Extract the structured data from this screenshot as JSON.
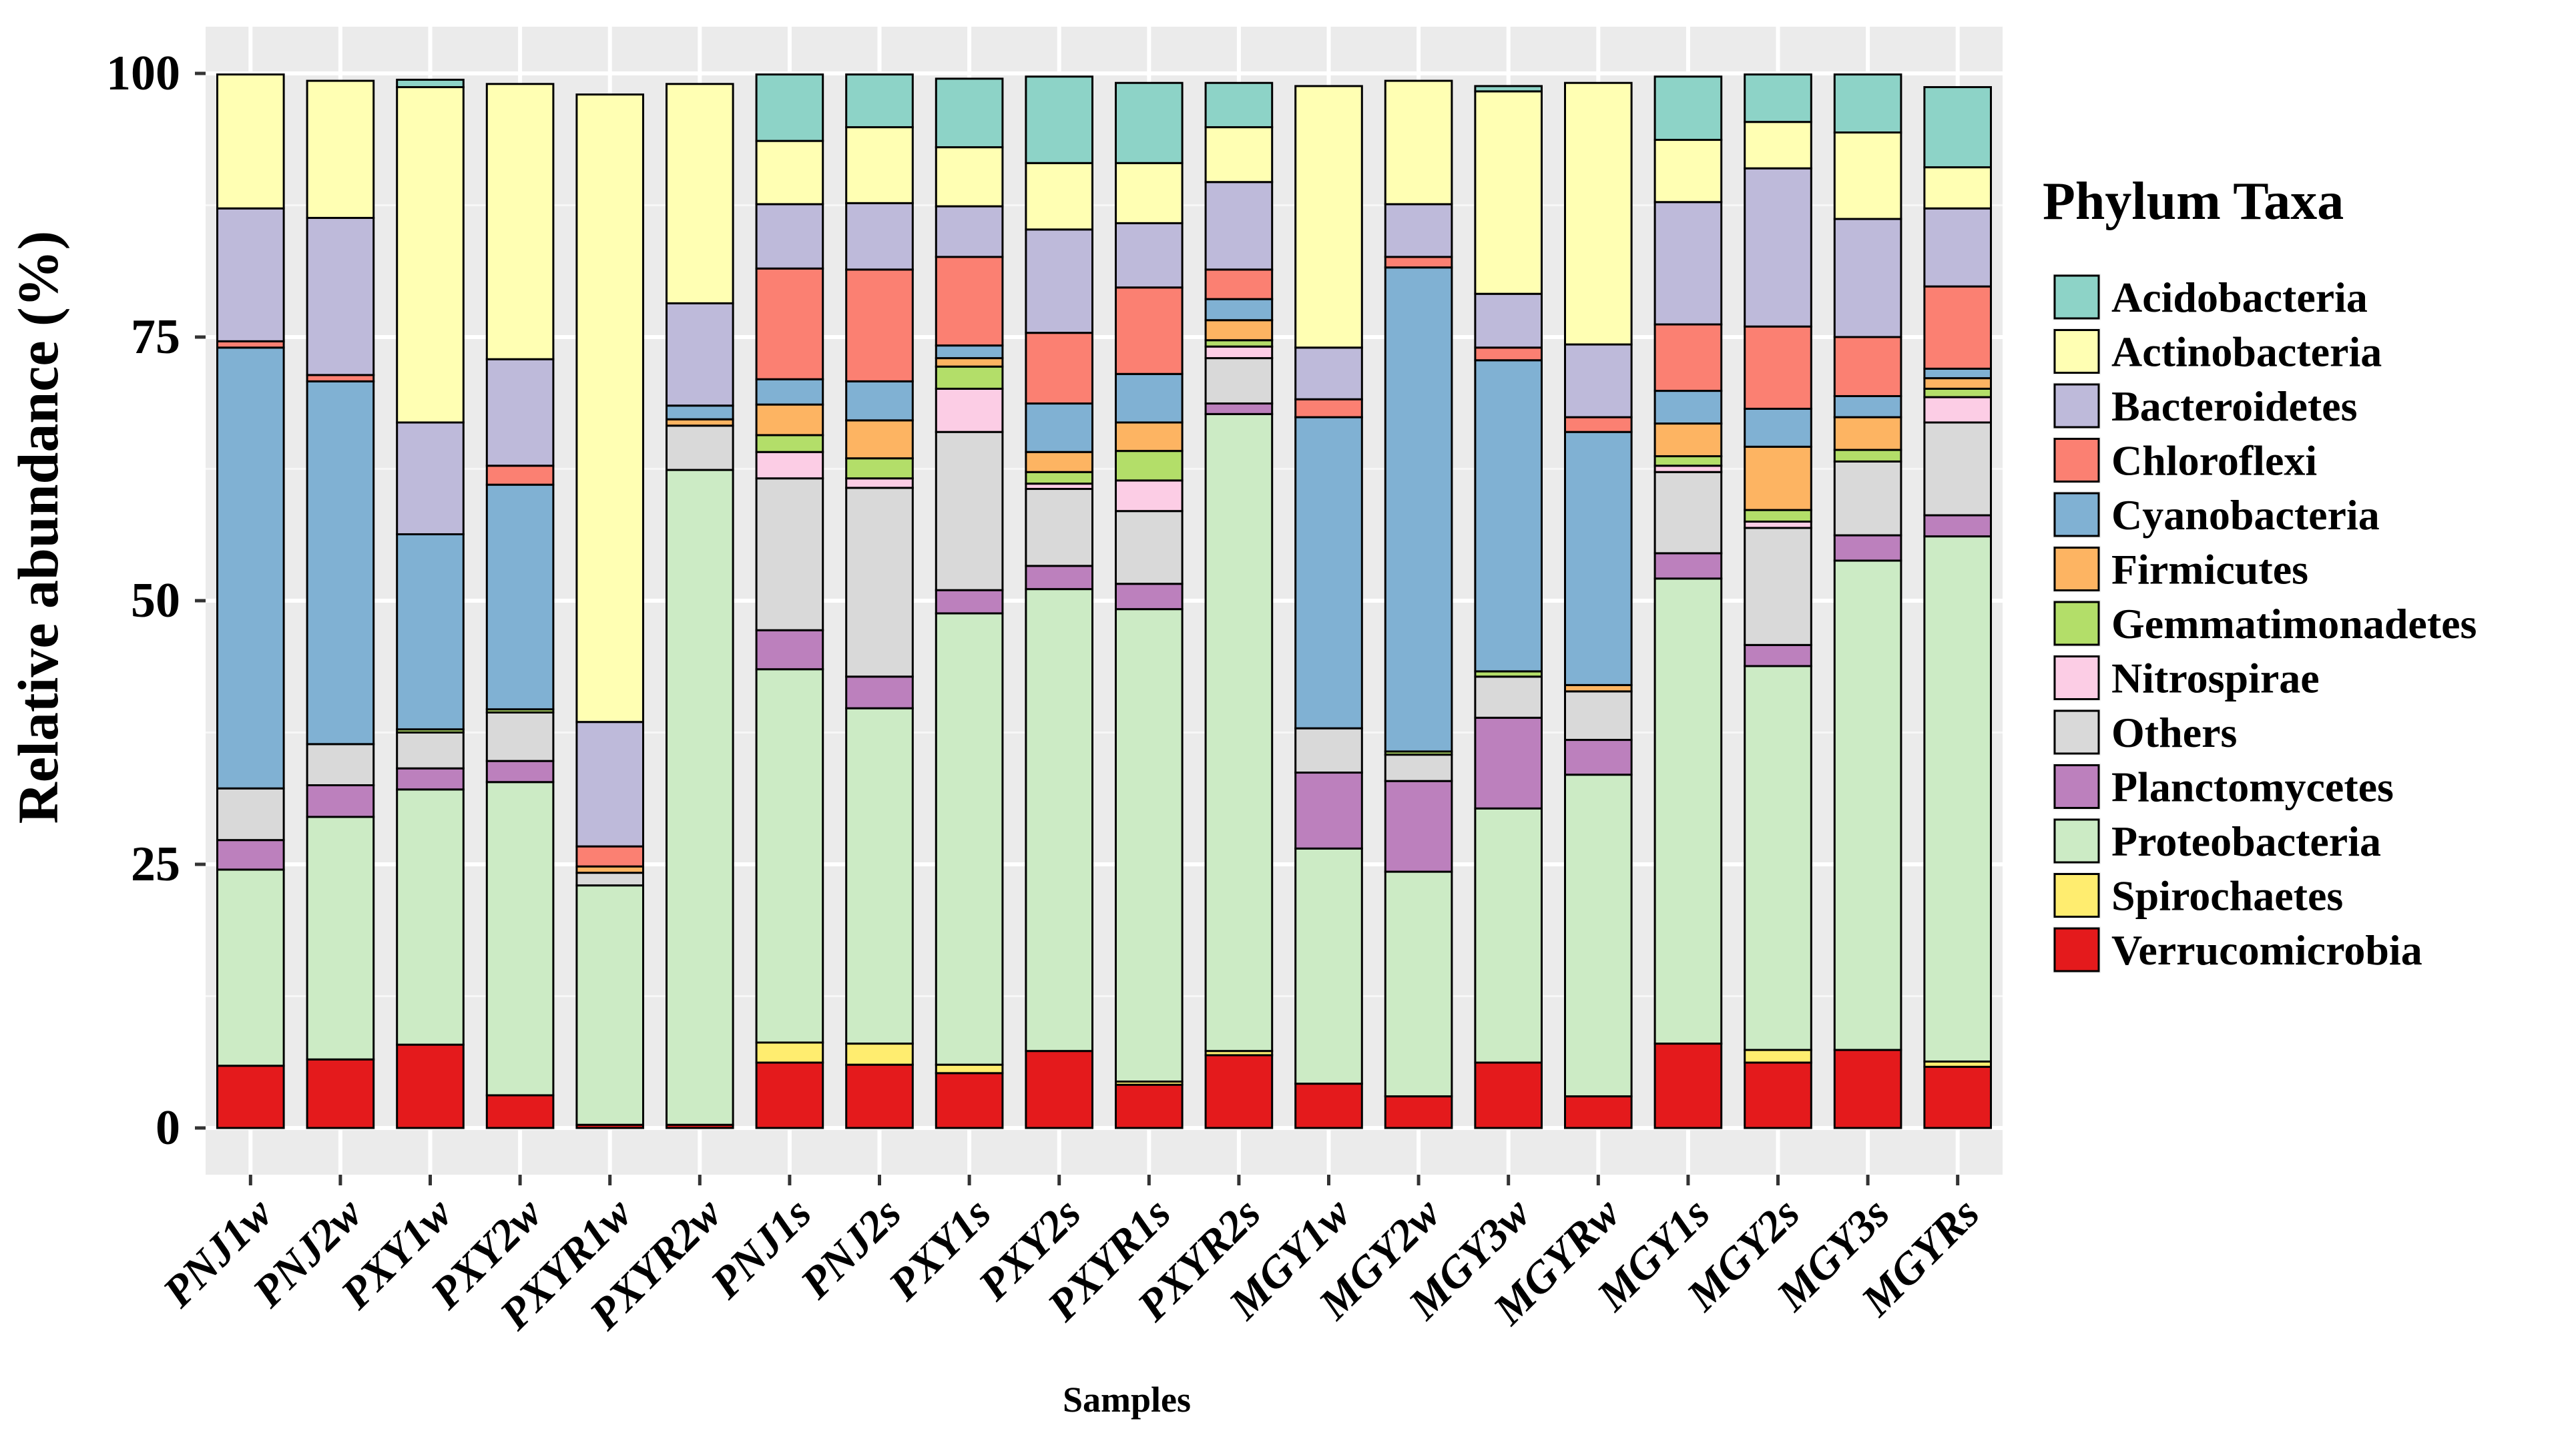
{
  "chart_data": {
    "type": "bar",
    "stacked": true,
    "title": "",
    "xlabel": "Samples",
    "ylabel": "Relative abundance (%)",
    "ylim": [
      0,
      100
    ],
    "yticks": [
      0,
      25,
      50,
      75,
      100
    ],
    "grid": true,
    "legend_position": "right",
    "legend_title": "Phylum Taxa",
    "categories": [
      "PNJ1w",
      "PNJ2w",
      "PXY1w",
      "PXY2w",
      "PXYR1w",
      "PXYR2w",
      "PNJ1s",
      "PNJ2s",
      "PXY1s",
      "PXY2s",
      "PXYR1s",
      "PXYR2s",
      "MGY1w",
      "MGY2w",
      "MGY3w",
      "MGYRw",
      "MGY1s",
      "MGY2s",
      "MGY3s",
      "MGYRs"
    ],
    "stack_order_bottom_to_top": [
      "Verrucomicrobia",
      "Spirochaetes",
      "Proteobacteria",
      "Planctomycetes",
      "Others",
      "Nitrospirae",
      "Gemmatimonadetes",
      "Firmicutes",
      "Cyanobacteria",
      "Chloroflexi",
      "Bacteroidetes",
      "Actinobacteria",
      "Acidobacteria"
    ],
    "series": [
      {
        "name": "Acidobacteria",
        "color": "#8dd3c7",
        "values": [
          0,
          0,
          0.7,
          0,
          0,
          0,
          6.3,
          5.0,
          6.5,
          8.2,
          7.6,
          4.2,
          0,
          0,
          0.5,
          0,
          6.0,
          4.5,
          5.5,
          7.6
        ]
      },
      {
        "name": "Actinobacteria",
        "color": "#ffffb3",
        "values": [
          12.7,
          13.0,
          31.8,
          26.1,
          59.5,
          20.8,
          6.0,
          7.2,
          5.6,
          6.3,
          5.7,
          5.2,
          24.8,
          11.7,
          19.2,
          24.8,
          5.9,
          4.4,
          8.2,
          3.9
        ]
      },
      {
        "name": "Bacteroidetes",
        "color": "#bebada",
        "values": [
          12.6,
          14.9,
          10.6,
          10.1,
          11.8,
          9.7,
          6.1,
          6.3,
          4.8,
          9.8,
          6.1,
          8.3,
          4.9,
          5.0,
          5.1,
          6.9,
          11.6,
          15.0,
          11.2,
          7.4
        ]
      },
      {
        "name": "Chloroflexi",
        "color": "#fb8072",
        "values": [
          0.6,
          0.6,
          0,
          1.8,
          1.9,
          0,
          10.5,
          10.6,
          8.4,
          6.7,
          8.2,
          2.8,
          1.7,
          1.0,
          1.2,
          1.4,
          6.3,
          7.8,
          5.6,
          7.8
        ]
      },
      {
        "name": "Cyanobacteria",
        "color": "#80b1d3",
        "values": [
          41.8,
          34.4,
          18.5,
          21.3,
          0,
          1.3,
          2.4,
          3.7,
          1.2,
          4.6,
          4.6,
          2.0,
          29.5,
          45.9,
          29.5,
          24.0,
          3.1,
          3.6,
          2.0,
          0.9
        ]
      },
      {
        "name": "Firmicutes",
        "color": "#fdb462",
        "values": [
          0,
          0,
          0,
          0,
          0.6,
          0.6,
          2.9,
          3.6,
          0.8,
          1.9,
          2.7,
          1.9,
          0,
          0,
          0,
          0.6,
          3.1,
          6.0,
          3.1,
          1.0
        ]
      },
      {
        "name": "Gemmatimonadetes",
        "color": "#b3de69",
        "values": [
          0,
          0,
          0.3,
          0.3,
          0,
          0,
          1.6,
          1.9,
          2.1,
          1.1,
          2.8,
          0.6,
          0,
          0.3,
          0.5,
          0,
          0.9,
          1.1,
          1.1,
          0.8
        ]
      },
      {
        "name": "Nitrospirae",
        "color": "#fccde5",
        "values": [
          0,
          0,
          0,
          0,
          0,
          0,
          2.5,
          0.9,
          4.1,
          0.5,
          2.9,
          1.1,
          0,
          0,
          0,
          0,
          0.6,
          0.6,
          0,
          2.4
        ]
      },
      {
        "name": "Others",
        "color": "#d9d9d9",
        "values": [
          4.9,
          3.9,
          3.4,
          4.6,
          1.2,
          4.2,
          14.4,
          17.9,
          15.0,
          7.3,
          6.9,
          4.3,
          4.2,
          2.5,
          3.9,
          4.6,
          7.7,
          11.1,
          7.0,
          8.8
        ]
      },
      {
        "name": "Planctomycetes",
        "color": "#bc80bd",
        "values": [
          2.8,
          3.0,
          2.0,
          2.0,
          0,
          0,
          3.7,
          3.0,
          2.2,
          2.2,
          2.4,
          1.0,
          7.2,
          8.6,
          8.6,
          3.3,
          2.4,
          2.0,
          2.4,
          2.0
        ]
      },
      {
        "name": "Proteobacteria",
        "color": "#ccebc5",
        "values": [
          18.6,
          23.0,
          24.2,
          29.7,
          22.7,
          62.1,
          35.4,
          31.8,
          42.8,
          43.8,
          44.8,
          60.4,
          22.3,
          21.3,
          24.1,
          30.5,
          44.1,
          36.4,
          46.4,
          49.8
        ]
      },
      {
        "name": "Spirochaetes",
        "color": "#ffed6f",
        "values": [
          0,
          0,
          0,
          0,
          0,
          0,
          1.9,
          2.0,
          0.8,
          0,
          0.3,
          0.4,
          0,
          0,
          0,
          0,
          0,
          1.2,
          0,
          0.5
        ]
      },
      {
        "name": "Verrucomicrobia",
        "color": "#e41a1c",
        "values": [
          5.9,
          6.5,
          7.9,
          3.1,
          0.3,
          0.3,
          6.2,
          6.0,
          5.2,
          7.3,
          4.1,
          6.9,
          4.2,
          3.0,
          6.2,
          3.0,
          8.0,
          6.2,
          7.4,
          5.8
        ]
      }
    ]
  }
}
